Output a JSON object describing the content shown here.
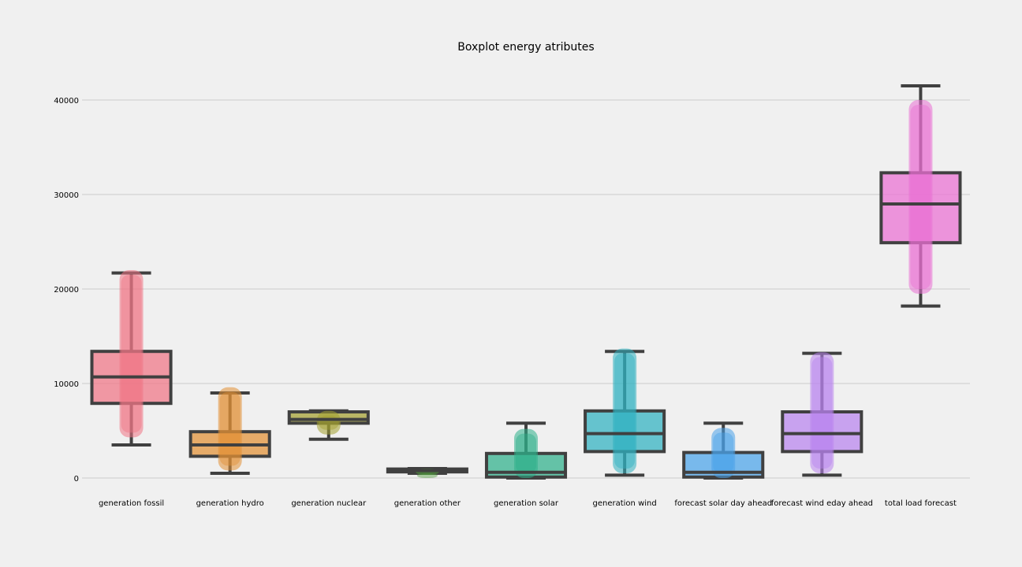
{
  "chart_data": {
    "type": "box",
    "title": "Boxplot energy atributes",
    "xlabel": "",
    "ylabel": "",
    "ylim": [
      -1500,
      43500
    ],
    "yticks": [
      0,
      10000,
      20000,
      30000,
      40000
    ],
    "grid": "horizontal",
    "categories": [
      "generation fossil",
      "generation hydro",
      "generation nuclear",
      "generation other",
      "generation solar",
      "generation wind",
      "forecast solar day ahead",
      "forecast wind eday ahead",
      "total load forecast"
    ],
    "boxes": [
      {
        "whisker_low": 3500,
        "q1": 7900,
        "median": 10700,
        "q3": 13400,
        "whisker_high": 21700,
        "points_low": 4300,
        "points_high": 22000,
        "color": "#f07585"
      },
      {
        "whisker_low": 500,
        "q1": 2300,
        "median": 3500,
        "q3": 4900,
        "whisker_high": 9000,
        "points_low": 800,
        "points_high": 9600,
        "color": "#e29035"
      },
      {
        "whisker_low": 4100,
        "q1": 5800,
        "median": 6200,
        "q3": 7000,
        "whisker_high": 7100,
        "points_low": 4600,
        "points_high": 7100,
        "color": "#a3a02f"
      },
      {
        "whisker_low": 500,
        "q1": 650,
        "median": 800,
        "q3": 950,
        "whisker_high": 1000,
        "points_low": 500,
        "points_high": 1000,
        "color": "#4e9a3a"
      },
      {
        "whisker_low": 0,
        "q1": 100,
        "median": 600,
        "q3": 2600,
        "whisker_high": 5800,
        "points_low": 0,
        "points_high": 5200,
        "color": "#2eb08a"
      },
      {
        "whisker_low": 300,
        "q1": 2800,
        "median": 4700,
        "q3": 7100,
        "whisker_high": 13400,
        "points_low": 500,
        "points_high": 13700,
        "color": "#2fb1c0"
      },
      {
        "whisker_low": 0,
        "q1": 100,
        "median": 600,
        "q3": 2700,
        "whisker_high": 5800,
        "points_low": 0,
        "points_high": 5300,
        "color": "#4aa3ea"
      },
      {
        "whisker_low": 300,
        "q1": 2800,
        "median": 4700,
        "q3": 7000,
        "whisker_high": 13200,
        "points_low": 500,
        "points_high": 13300,
        "color": "#b983ef"
      },
      {
        "whisker_low": 18200,
        "q1": 24900,
        "median": 29000,
        "q3": 32300,
        "whisker_high": 41500,
        "points_low": 19500,
        "points_high": 40000,
        "color": "#ea6fd3"
      }
    ]
  }
}
